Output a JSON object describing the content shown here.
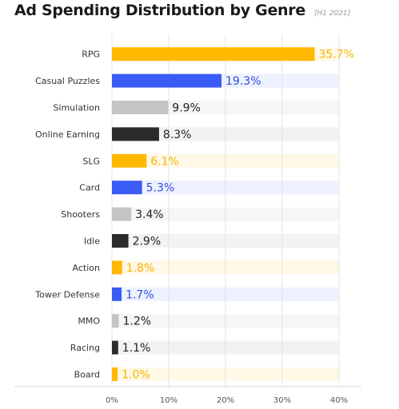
{
  "title": "Ad Spending Distribution by Genre",
  "subtitle": "[H1 2021]",
  "colors": {
    "yellow": "#FFB800",
    "blue": "#3A5BF6",
    "gray": "#C4C4C4",
    "black": "#2B2B2B",
    "yellow_label": "#F5B400",
    "blue_label": "#2E4FE0",
    "dark_label": "#222222"
  },
  "chart_data": {
    "type": "bar",
    "orientation": "horizontal",
    "categories": [
      "RPG",
      "Casual Puzzles",
      "Simulation",
      "Online Earning",
      "SLG",
      "Card",
      "Shooters",
      "Idle",
      "Action",
      "Tower Defense",
      "MMO",
      "Racing",
      "Board"
    ],
    "values": [
      35.7,
      19.3,
      9.9,
      8.3,
      6.1,
      5.3,
      3.4,
      2.9,
      1.8,
      1.7,
      1.2,
      1.1,
      1.0
    ],
    "value_labels": [
      "35.7%",
      "19.3%",
      "9.9%",
      "8.3%",
      "6.1%",
      "5.3%",
      "3.4%",
      "2.9%",
      "1.8%",
      "1.7%",
      "1.2%",
      "1.1%",
      "1.0%"
    ],
    "bar_colors": [
      "yellow",
      "blue",
      "gray",
      "black",
      "yellow",
      "blue",
      "gray",
      "black",
      "yellow",
      "blue",
      "gray",
      "black",
      "yellow"
    ],
    "xlim": [
      0,
      40
    ],
    "xticks": [
      0,
      10,
      20,
      30,
      40
    ],
    "xtick_labels": [
      "0%",
      "10%",
      "20%",
      "30%",
      "40%"
    ],
    "grid": true,
    "legend": "none"
  }
}
